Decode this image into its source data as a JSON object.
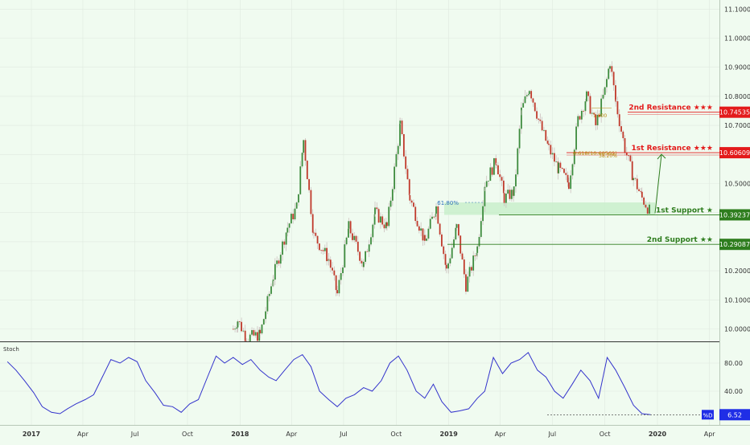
{
  "colors": {
    "background": "#f0fbf0",
    "bull": "#3d8b3d",
    "bear": "#c0392b",
    "resistance": "#e31b1b",
    "support": "#2e7d1e",
    "support_zone": "#c9eecb",
    "stoch": "#3333cc",
    "grid": "#dfeadf",
    "axis_text": "#333333"
  },
  "stoch_panel": {
    "label": "Stoch",
    "value_label": "%D",
    "value": "6.52"
  },
  "fib_labels": {
    "fib_618_left": "61.80%",
    "fib_618_right": "0.618(10.60569)",
    "fib_382": "38.20%",
    "fib_small": "1.000"
  },
  "chart_data": [
    {
      "type": "candlestick",
      "title": "",
      "ylim": [
        9.95,
        11.12
      ],
      "y_ticks": [
        "11.10000",
        "11.00000",
        "10.90000",
        "10.80000",
        "10.70000",
        "10.60000",
        "10.50000",
        "10.40000",
        "10.30000",
        "10.20000",
        "10.10000",
        "10.00000"
      ],
      "x_ticks": [
        "2017",
        "Apr",
        "Jul",
        "Oct",
        "2018",
        "Apr",
        "Jul",
        "Oct",
        "2019",
        "Apr",
        "Jul",
        "Oct",
        "2020",
        "Apr"
      ],
      "levels": [
        {
          "name": "2nd Resistance ★★★",
          "value": 10.74535,
          "value_label": "10.74535",
          "role": "resistance"
        },
        {
          "name": "1st Resistance ★★★",
          "value": 10.60609,
          "value_label": "10.60609",
          "role": "resistance"
        },
        {
          "name": "1st Support ★",
          "value": 10.39237,
          "value_label": "10.39237",
          "role": "support"
        },
        {
          "name": "2nd Support ★★",
          "value": 10.29087,
          "value_label": "10.29087",
          "role": "support"
        }
      ],
      "path_keypoints": [
        [
          "2017-12-20",
          10.0
        ],
        [
          "2017-12-28",
          10.03
        ],
        [
          "2018-01-12",
          9.97
        ],
        [
          "2018-02-05",
          9.98
        ],
        [
          "2018-02-28",
          10.18
        ],
        [
          "2018-03-25",
          10.35
        ],
        [
          "2018-04-10",
          10.42
        ],
        [
          "2018-04-22",
          10.65
        ],
        [
          "2018-05-10",
          10.32
        ],
        [
          "2018-06-05",
          10.24
        ],
        [
          "2018-06-20",
          10.12
        ],
        [
          "2018-07-10",
          10.35
        ],
        [
          "2018-08-05",
          10.22
        ],
        [
          "2018-08-25",
          10.4
        ],
        [
          "2018-09-15",
          10.35
        ],
        [
          "2018-10-08",
          10.7
        ],
        [
          "2018-10-25",
          10.45
        ],
        [
          "2018-11-20",
          10.3
        ],
        [
          "2018-12-10",
          10.42
        ],
        [
          "2018-12-28",
          10.2
        ],
        [
          "2019-01-15",
          10.35
        ],
        [
          "2019-01-31",
          10.15
        ],
        [
          "2019-02-20",
          10.28
        ],
        [
          "2019-03-05",
          10.5
        ],
        [
          "2019-03-25",
          10.58
        ],
        [
          "2019-04-08",
          10.45
        ],
        [
          "2019-04-25",
          10.47
        ],
        [
          "2019-05-08",
          10.75
        ],
        [
          "2019-05-22",
          10.83
        ],
        [
          "2019-06-10",
          10.7
        ],
        [
          "2019-06-25",
          10.62
        ],
        [
          "2019-07-12",
          10.55
        ],
        [
          "2019-07-30",
          10.5
        ],
        [
          "2019-08-15",
          10.72
        ],
        [
          "2019-08-30",
          10.8
        ],
        [
          "2019-09-15",
          10.7
        ],
        [
          "2019-10-01",
          10.82
        ],
        [
          "2019-10-10",
          10.92
        ],
        [
          "2019-10-20",
          10.78
        ],
        [
          "2019-11-05",
          10.62
        ],
        [
          "2019-11-20",
          10.52
        ],
        [
          "2019-12-05",
          10.45
        ],
        [
          "2019-12-20",
          10.4
        ]
      ],
      "annotation": "projected rebound from 1st Support to 1st Resistance"
    },
    {
      "type": "line",
      "title": "",
      "ylim": [
        0,
        100
      ],
      "y_ticks": [
        "80.00",
        "40.00"
      ],
      "series": [
        {
          "values": [
            [
              "2016-11-20",
              82
            ],
            [
              "2016-12-05",
              70
            ],
            [
              "2016-12-20",
              55
            ],
            [
              "2017-01-05",
              38
            ],
            [
              "2017-01-20",
              18
            ],
            [
              "2017-02-05",
              10
            ],
            [
              "2017-02-20",
              8
            ],
            [
              "2017-03-05",
              15
            ],
            [
              "2017-03-20",
              22
            ],
            [
              "2017-04-05",
              28
            ],
            [
              "2017-04-20",
              35
            ],
            [
              "2017-05-05",
              60
            ],
            [
              "2017-05-20",
              85
            ],
            [
              "2017-06-05",
              80
            ],
            [
              "2017-06-20",
              88
            ],
            [
              "2017-07-05",
              82
            ],
            [
              "2017-07-20",
              55
            ],
            [
              "2017-08-05",
              38
            ],
            [
              "2017-08-20",
              20
            ],
            [
              "2017-09-05",
              18
            ],
            [
              "2017-09-20",
              10
            ],
            [
              "2017-10-05",
              22
            ],
            [
              "2017-10-20",
              28
            ],
            [
              "2017-11-05",
              60
            ],
            [
              "2017-11-20",
              90
            ],
            [
              "2017-12-05",
              80
            ],
            [
              "2017-12-20",
              88
            ],
            [
              "2018-01-05",
              78
            ],
            [
              "2018-01-20",
              85
            ],
            [
              "2018-02-05",
              70
            ],
            [
              "2018-02-20",
              60
            ],
            [
              "2018-03-05",
              55
            ],
            [
              "2018-03-20",
              70
            ],
            [
              "2018-04-05",
              85
            ],
            [
              "2018-04-20",
              92
            ],
            [
              "2018-05-05",
              75
            ],
            [
              "2018-05-20",
              40
            ],
            [
              "2018-06-05",
              28
            ],
            [
              "2018-06-20",
              18
            ],
            [
              "2018-07-05",
              30
            ],
            [
              "2018-07-20",
              35
            ],
            [
              "2018-08-05",
              45
            ],
            [
              "2018-08-20",
              40
            ],
            [
              "2018-09-05",
              55
            ],
            [
              "2018-09-20",
              80
            ],
            [
              "2018-10-05",
              90
            ],
            [
              "2018-10-20",
              70
            ],
            [
              "2018-11-05",
              40
            ],
            [
              "2018-11-20",
              30
            ],
            [
              "2018-12-05",
              50
            ],
            [
              "2018-12-20",
              25
            ],
            [
              "2019-01-05",
              10
            ],
            [
              "2019-01-20",
              12
            ],
            [
              "2019-02-05",
              15
            ],
            [
              "2019-02-20",
              30
            ],
            [
              "2019-03-05",
              40
            ],
            [
              "2019-03-20",
              88
            ],
            [
              "2019-04-05",
              65
            ],
            [
              "2019-04-20",
              80
            ],
            [
              "2019-05-05",
              85
            ],
            [
              "2019-05-20",
              95
            ],
            [
              "2019-06-05",
              70
            ],
            [
              "2019-06-20",
              60
            ],
            [
              "2019-07-05",
              40
            ],
            [
              "2019-07-20",
              30
            ],
            [
              "2019-08-05",
              50
            ],
            [
              "2019-08-20",
              70
            ],
            [
              "2019-09-05",
              55
            ],
            [
              "2019-09-20",
              30
            ],
            [
              "2019-10-05",
              88
            ],
            [
              "2019-10-20",
              70
            ],
            [
              "2019-11-05",
              45
            ],
            [
              "2019-11-20",
              20
            ],
            [
              "2019-12-05",
              8
            ],
            [
              "2019-12-20",
              6.52
            ]
          ]
        }
      ],
      "reference_line": 6.52,
      "current_value": 6.52
    }
  ]
}
